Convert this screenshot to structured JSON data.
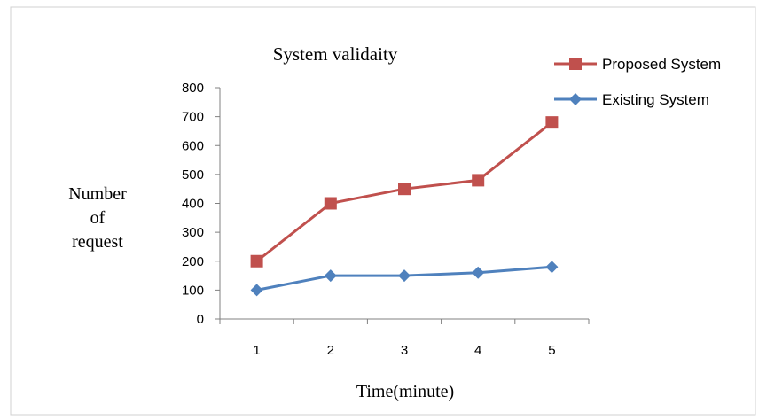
{
  "chart_data": {
    "type": "line",
    "title": "System validaity",
    "xlabel": "Time(minute)",
    "ylabel": [
      "Number",
      "of",
      "request"
    ],
    "categories": [
      "1",
      "2",
      "3",
      "4",
      "5"
    ],
    "ylim": [
      0,
      800
    ],
    "yticks": [
      "0",
      "100",
      "200",
      "300",
      "400",
      "500",
      "600",
      "700",
      "800"
    ],
    "grid": false,
    "legend_position": "top-right",
    "series": [
      {
        "name": "Proposed System",
        "values": [
          200,
          400,
          450,
          480,
          680
        ],
        "color": "#c0504d",
        "marker": "square"
      },
      {
        "name": "Existing System",
        "values": [
          100,
          150,
          150,
          160,
          180
        ],
        "color": "#4f81bd",
        "marker": "diamond"
      }
    ]
  }
}
